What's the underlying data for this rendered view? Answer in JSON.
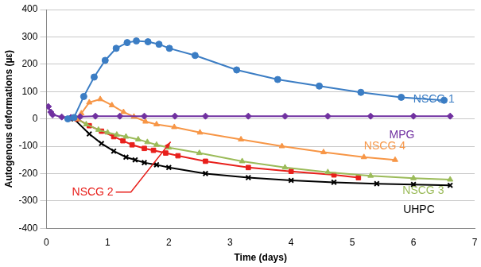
{
  "chart_data": {
    "type": "line",
    "x_label": "Time (days)",
    "y_label": "Autogenous deformations (µε)",
    "xlim": [
      0,
      7
    ],
    "xticks": [
      0,
      1,
      2,
      3,
      4,
      5,
      6,
      7
    ],
    "ylim": [
      -400,
      400
    ],
    "yticks": [
      -400,
      -300,
      -200,
      -100,
      0,
      100,
      200,
      300,
      400
    ],
    "grid": true,
    "series": [
      {
        "name": "NSCG 1",
        "color": "#3b7dc4",
        "marker": "circle",
        "x": [
          0.35,
          0.45,
          0.61,
          0.78,
          0.96,
          1.14,
          1.32,
          1.47,
          1.66,
          1.84,
          2.01,
          2.43,
          3.11,
          3.78,
          4.46,
          5.14,
          5.8,
          6.5
        ],
        "values": [
          0,
          5,
          82,
          153,
          214,
          258,
          279,
          285,
          282,
          273,
          258,
          232,
          179,
          144,
          120,
          97,
          79,
          68
        ]
      },
      {
        "name": "MPG",
        "color": "#7030a0",
        "marker": "diamond",
        "x": [
          0.03,
          0.07,
          0.1,
          0.25,
          0.4,
          0.55,
          0.8,
          1.2,
          1.6,
          2.1,
          2.6,
          3.3,
          3.9,
          4.6,
          5.3,
          6.0,
          6.6
        ],
        "values": [
          45,
          25,
          15,
          7,
          5,
          8,
          10,
          10,
          10,
          10,
          10,
          10,
          10,
          10,
          10,
          10,
          10
        ]
      },
      {
        "name": "NSCG 4",
        "color": "#f79646",
        "marker": "triangle",
        "x": [
          0.5,
          0.57,
          0.7,
          0.88,
          1.07,
          1.26,
          1.43,
          1.62,
          1.8,
          2.09,
          2.51,
          3.18,
          3.85,
          4.53,
          5.19,
          5.7
        ],
        "values": [
          0,
          20,
          60,
          72,
          50,
          25,
          8,
          -10,
          -20,
          -30,
          -50,
          -75,
          -100,
          -122,
          -140,
          -150
        ]
      },
      {
        "name": "NSCG 3",
        "color": "#9bbb59",
        "marker": "triangle",
        "x": [
          0.5,
          0.65,
          0.85,
          1.0,
          1.15,
          1.3,
          1.5,
          1.65,
          1.8,
          2.0,
          2.5,
          3.2,
          3.9,
          4.6,
          5.3,
          6.0,
          6.6
        ],
        "values": [
          0,
          -20,
          -40,
          -50,
          -58,
          -65,
          -75,
          -85,
          -95,
          -105,
          -125,
          -155,
          -178,
          -195,
          -208,
          -217,
          -222
        ]
      },
      {
        "name": "NSCG 2",
        "color": "#e8201c",
        "marker": "square",
        "x": [
          0.5,
          0.7,
          0.9,
          1.1,
          1.25,
          1.4,
          1.6,
          1.75,
          1.95,
          2.15,
          2.6,
          3.3,
          4.0,
          4.7,
          5.1
        ],
        "values": [
          0,
          -25,
          -45,
          -65,
          -80,
          -95,
          -108,
          -115,
          -125,
          -135,
          -155,
          -178,
          -192,
          -205,
          -215
        ]
      },
      {
        "name": "UHPC",
        "color": "#000000",
        "marker": "cross",
        "x": [
          0.45,
          0.7,
          0.9,
          1.1,
          1.3,
          1.45,
          1.6,
          1.8,
          2.0,
          2.6,
          3.3,
          4.0,
          4.7,
          5.4,
          6.0,
          6.6
        ],
        "values": [
          0,
          -55,
          -90,
          -118,
          -140,
          -150,
          -160,
          -168,
          -178,
          -200,
          -215,
          -225,
          -232,
          -237,
          -240,
          -243
        ]
      }
    ]
  }
}
